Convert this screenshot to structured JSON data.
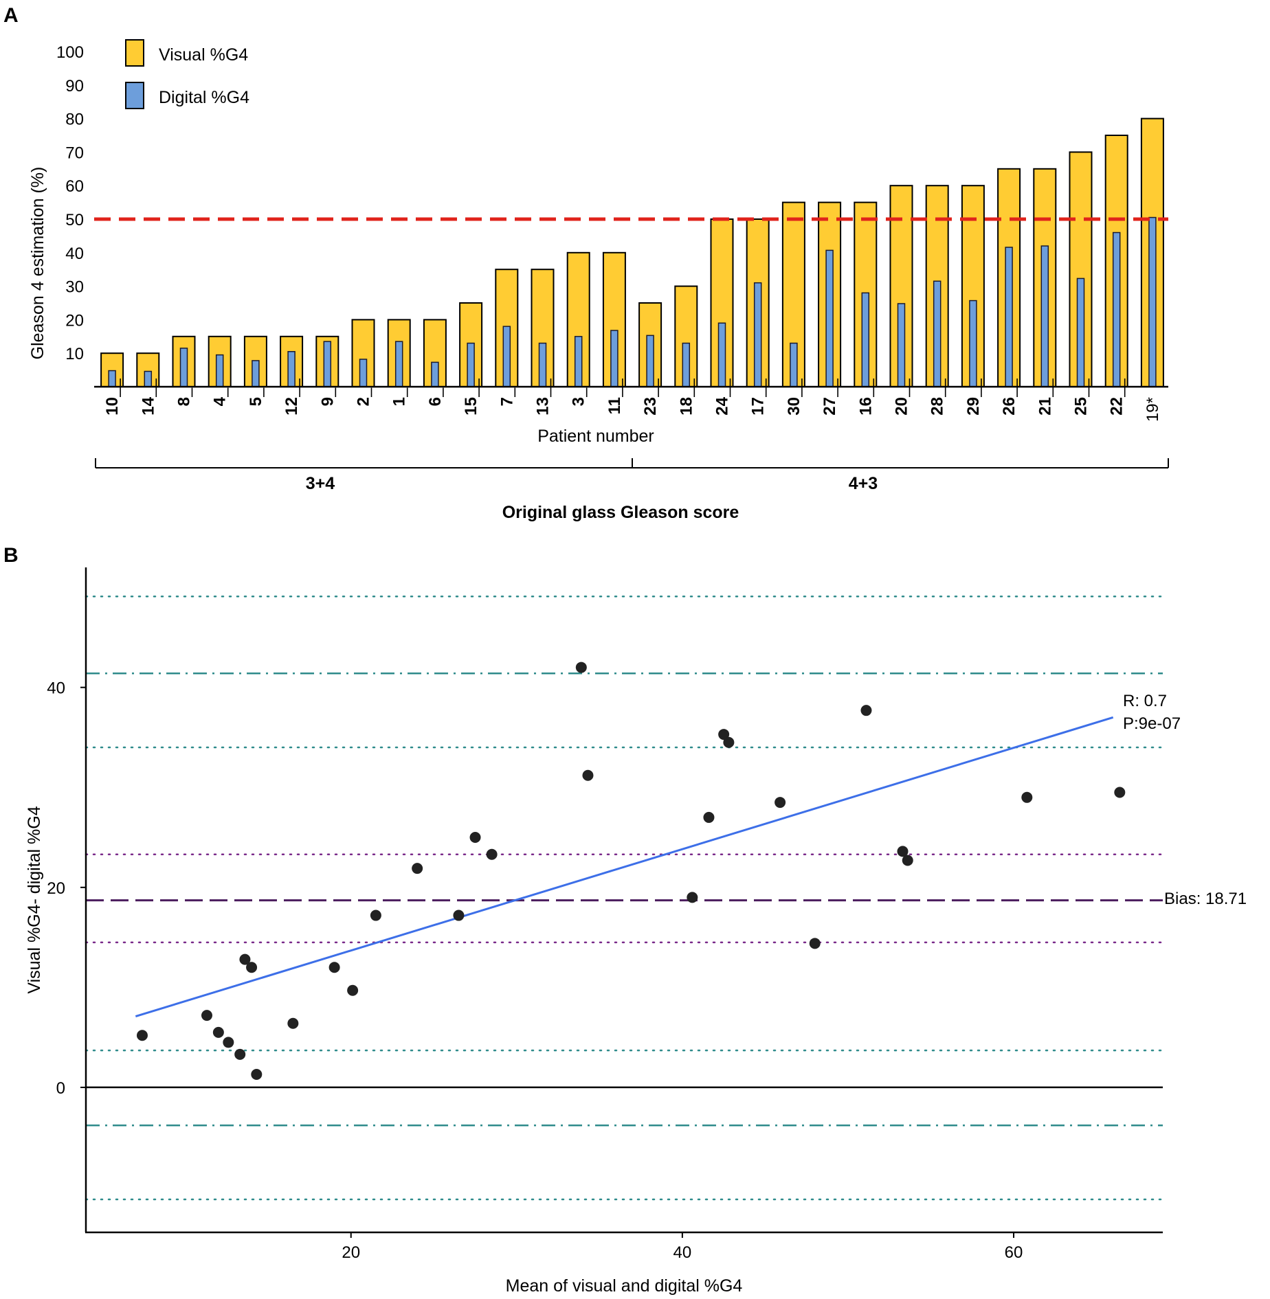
{
  "panels": {
    "a_label": "A",
    "b_label": "B"
  },
  "colors": {
    "visual": "#FFCC33",
    "digital": "#6D9EDB",
    "threshold": "#E0231B",
    "regression": "#3D6FE8",
    "bias": "#4B1D5E",
    "loa_teal": "#2E8B8B",
    "ci_purple": "#7A2A8A"
  },
  "chart_data": [
    {
      "type": "bar",
      "ylabel": "Gleason 4 estimation (%)",
      "xlabel": "Patient number",
      "ylim": [
        0,
        100
      ],
      "yticks": [
        10,
        20,
        30,
        40,
        50,
        60,
        70,
        80,
        90,
        100
      ],
      "categories": [
        "10",
        "14",
        "8",
        "4",
        "5",
        "12",
        "9",
        "2",
        "1",
        "6",
        "15",
        "7",
        "13",
        "3",
        "11",
        "23",
        "18",
        "24",
        "17",
        "30",
        "27",
        "16",
        "20",
        "28",
        "29",
        "26",
        "21",
        "25",
        "22",
        "19*"
      ],
      "series": [
        {
          "name": "Visual %G4",
          "values": [
            10,
            10,
            15,
            15,
            15,
            15,
            15,
            20,
            20,
            20,
            25,
            35,
            35,
            40,
            40,
            25,
            30,
            50,
            50,
            55,
            55,
            55,
            60,
            60,
            60,
            65,
            65,
            70,
            75,
            80
          ]
        },
        {
          "name": "Digital %G4",
          "values": [
            4.8,
            4.6,
            11.5,
            9.5,
            7.8,
            10.5,
            13.5,
            8.2,
            13.5,
            7.3,
            13,
            18,
            13,
            15,
            16.8,
            15.3,
            13,
            19,
            31,
            13,
            40.7,
            28,
            24.8,
            31.5,
            25.7,
            41.6,
            42,
            32.3,
            46,
            50.5
          ]
        }
      ],
      "reference_line": {
        "y": 50,
        "style": "dashed"
      },
      "groups": [
        {
          "label": "3+4",
          "from": 0,
          "to": 14
        },
        {
          "label": "4+3",
          "from": 15,
          "to": 29
        }
      ],
      "group_axis_title": "Original glass Gleason score"
    },
    {
      "type": "scatter",
      "xlabel": "Mean of visual and digital %G4",
      "ylabel": "Visual %G4- digital %G4",
      "xlim": [
        4,
        69
      ],
      "ylim": [
        -14.5,
        52
      ],
      "xticks": [
        20,
        40,
        60
      ],
      "yticks": [
        0,
        20,
        40
      ],
      "points": [
        [
          7.4,
          5.2
        ],
        [
          11.3,
          7.2
        ],
        [
          12.0,
          5.5
        ],
        [
          12.6,
          4.5
        ],
        [
          13.3,
          3.3
        ],
        [
          13.6,
          12.8
        ],
        [
          14.0,
          12.0
        ],
        [
          14.3,
          1.3
        ],
        [
          16.5,
          6.4
        ],
        [
          19.0,
          12.0
        ],
        [
          20.1,
          9.7
        ],
        [
          21.5,
          17.2
        ],
        [
          24.0,
          21.9
        ],
        [
          26.5,
          17.2
        ],
        [
          27.5,
          25.0
        ],
        [
          28.5,
          23.3
        ],
        [
          33.9,
          42.0
        ],
        [
          34.3,
          31.2
        ],
        [
          40.6,
          19.0
        ],
        [
          41.6,
          27.0
        ],
        [
          42.5,
          35.3
        ],
        [
          42.8,
          34.5
        ],
        [
          45.9,
          28.5
        ],
        [
          48.0,
          14.4
        ],
        [
          51.1,
          37.7
        ],
        [
          53.3,
          23.6
        ],
        [
          53.6,
          22.7
        ],
        [
          60.8,
          29.0
        ],
        [
          66.4,
          29.5
        ]
      ],
      "regression": {
        "x": [
          7.0,
          66.0
        ],
        "y": [
          7.1,
          37.0
        ],
        "r_label": "R: 0.7",
        "p_label": "P:9e-07"
      },
      "bias": {
        "value": 18.71,
        "label": "Bias: 18.71"
      },
      "limits_of_agreement": [
        41.4,
        -3.8
      ],
      "confidence_bands": [
        49.1,
        34.0,
        23.3,
        14.5,
        3.7,
        -11.2
      ]
    }
  ]
}
